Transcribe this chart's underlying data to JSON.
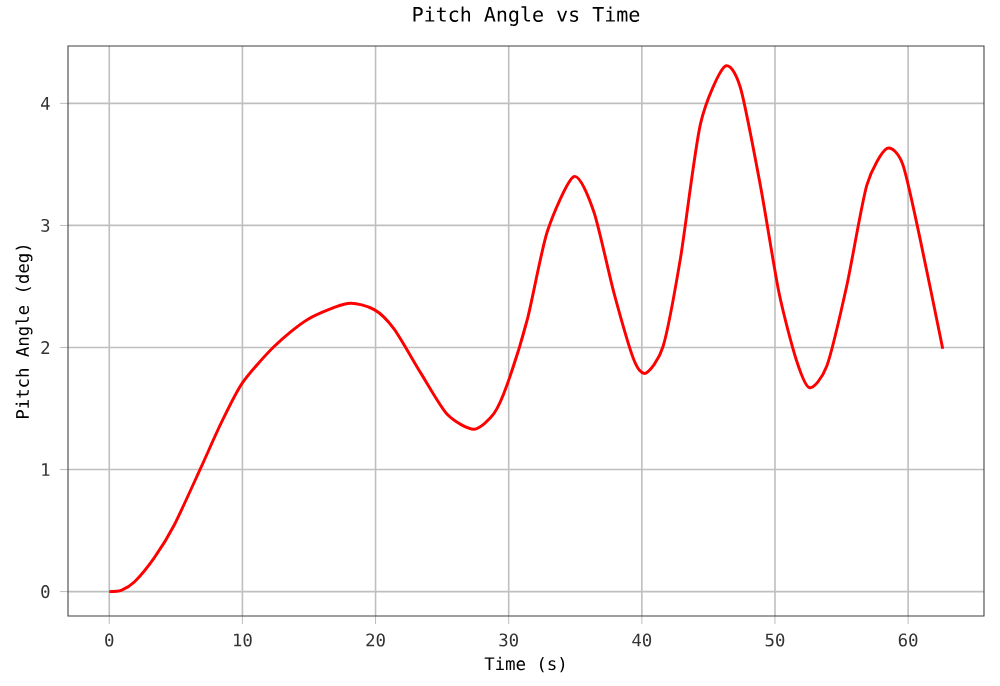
{
  "chart_data": {
    "type": "line",
    "title": "Pitch Angle vs Time",
    "xlabel": "Time (s)",
    "ylabel": "Pitch Angle (deg)",
    "xlim": [
      -3.1,
      65.7
    ],
    "ylim": [
      -0.2,
      4.47
    ],
    "xticks": [
      0,
      10,
      20,
      30,
      40,
      50,
      60
    ],
    "yticks": [
      0,
      1,
      2,
      3,
      4
    ],
    "grid": true,
    "series": [
      {
        "color": "#ff0000",
        "line_style": "solid",
        "marker": "none",
        "x": [
          0,
          0.9,
          1.9,
          3.4,
          4.9,
          6.9,
          8.4,
          10,
          12.4,
          14.9,
          17.9,
          19.9,
          21.4,
          23.4,
          25.4,
          27.4,
          28.9,
          29.9,
          31.4,
          32.9,
          34.9,
          36.4,
          37.9,
          39.4,
          40.3,
          41.6,
          42.9,
          44.4,
          46.2,
          47.4,
          48.9,
          50.3,
          51.6,
          52.6,
          53.9,
          55.4,
          56.9,
          58.4,
          59.6,
          60.9,
          62.6
        ],
        "values": [
          0,
          0.01,
          0.08,
          0.28,
          0.55,
          1.02,
          1.38,
          1.71,
          2.01,
          2.23,
          2.36,
          2.31,
          2.15,
          1.79,
          1.45,
          1.33,
          1.46,
          1.7,
          2.23,
          2.95,
          3.4,
          3.11,
          2.45,
          1.9,
          1.79,
          2.01,
          2.73,
          3.83,
          4.3,
          4.13,
          3.33,
          2.45,
          1.9,
          1.67,
          1.85,
          2.51,
          3.33,
          3.63,
          3.5,
          2.89,
          1.99
        ]
      }
    ]
  }
}
